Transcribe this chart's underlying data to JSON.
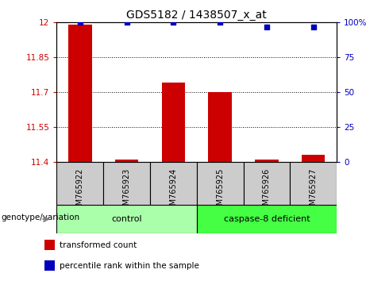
{
  "title": "GDS5182 / 1438507_x_at",
  "samples": [
    "GSM765922",
    "GSM765923",
    "GSM765924",
    "GSM765925",
    "GSM765926",
    "GSM765927"
  ],
  "red_values": [
    11.99,
    11.41,
    11.74,
    11.7,
    11.41,
    11.43
  ],
  "blue_values": [
    100,
    100,
    100,
    100,
    97,
    97
  ],
  "ylim_left": [
    11.4,
    12.0
  ],
  "ylim_right": [
    0,
    100
  ],
  "yticks_left": [
    11.4,
    11.55,
    11.7,
    11.85,
    12.0
  ],
  "yticks_right": [
    0,
    25,
    50,
    75,
    100
  ],
  "ytick_labels_left": [
    "11.4",
    "11.55",
    "11.7",
    "11.85",
    "12"
  ],
  "ytick_labels_right": [
    "0",
    "25",
    "50",
    "75",
    "100%"
  ],
  "groups": [
    {
      "label": "control",
      "start": 0,
      "end": 3,
      "color": "#AAFFAA"
    },
    {
      "label": "caspase-8 deficient",
      "start": 3,
      "end": 6,
      "color": "#44FF44"
    }
  ],
  "group_label": "genotype/variation",
  "legend_items": [
    {
      "label": "transformed count",
      "color": "#CC0000"
    },
    {
      "label": "percentile rank within the sample",
      "color": "#0000BB"
    }
  ],
  "bar_color": "#CC0000",
  "dot_color": "#0000BB",
  "background_color": "#FFFFFF",
  "plot_bg_color": "#FFFFFF",
  "tick_color_left": "#CC0000",
  "tick_color_right": "#0000BB",
  "xticklabel_bg": "#CCCCCC",
  "bar_width": 0.5
}
